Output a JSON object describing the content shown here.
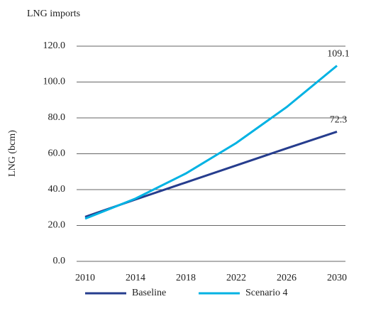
{
  "chart_data": {
    "type": "line",
    "title": "LNG imports",
    "y_label": "LNG (bcm)",
    "x": [
      2010,
      2014,
      2018,
      2022,
      2026,
      2030
    ],
    "xlim": [
      2010,
      2030
    ],
    "xticks": [
      2010,
      2014,
      2018,
      2022,
      2026,
      2030
    ],
    "ylim": [
      0,
      120
    ],
    "yticks": [
      {
        "value": 0,
        "label": "0.0"
      },
      {
        "value": 20,
        "label": "20.0"
      },
      {
        "value": 40,
        "label": "40.0"
      },
      {
        "value": 60,
        "label": "60.0"
      },
      {
        "value": 80,
        "label": "80.0"
      },
      {
        "value": 100,
        "label": "100.0"
      },
      {
        "value": 120,
        "label": "120.0"
      }
    ],
    "grid": true,
    "legend": "bottom",
    "series": [
      {
        "name": "Baseline",
        "color": "#263d8e",
        "values": [
          24.8,
          34.5,
          44,
          53.5,
          63,
          72.3
        ],
        "end_label": true
      },
      {
        "name": "Scenario 4",
        "color": "#00b2e3",
        "values": [
          23.8,
          35,
          49,
          66,
          86,
          109.1
        ],
        "end_label": true
      }
    ]
  }
}
